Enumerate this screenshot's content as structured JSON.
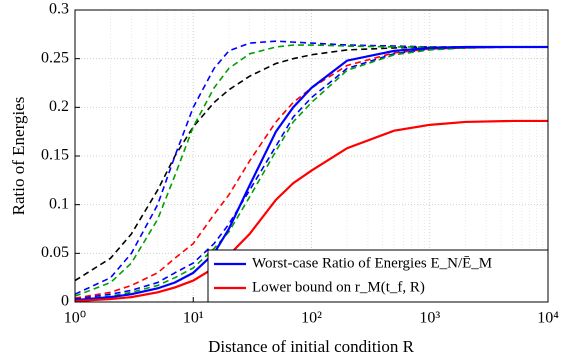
{
  "chart_data": {
    "type": "line",
    "xlabel": "Distance of initial condition R",
    "ylabel": "Ratio of Energies",
    "xscale": "log",
    "grid": true,
    "legend": "lower right",
    "xlim": [
      1,
      10000
    ],
    "xticks": [
      {
        "value": 1,
        "label": "10⁰"
      },
      {
        "value": 10,
        "label": "10¹"
      },
      {
        "value": 100,
        "label": "10²"
      },
      {
        "value": 1000,
        "label": "10³"
      },
      {
        "value": 10000,
        "label": "10⁴"
      }
    ],
    "ylim": [
      0,
      0.3
    ],
    "yticks": [
      0,
      0.05,
      0.1,
      0.15,
      0.2,
      0.25,
      0.3
    ],
    "x": [
      1,
      2,
      3,
      5,
      7,
      10,
      15,
      20,
      30,
      50,
      70,
      100,
      200,
      500,
      1000,
      2000,
      5000,
      10000
    ],
    "series": [
      {
        "color": "#000000",
        "style": "dashed",
        "values": [
          0.022,
          0.045,
          0.07,
          0.115,
          0.15,
          0.18,
          0.205,
          0.218,
          0.232,
          0.245,
          0.25,
          0.254,
          0.259,
          0.261,
          0.262,
          0.262,
          0.262,
          0.262
        ]
      },
      {
        "color": "#0000ff",
        "style": "dashed",
        "values": [
          0.008,
          0.025,
          0.05,
          0.1,
          0.15,
          0.2,
          0.24,
          0.258,
          0.266,
          0.268,
          0.267,
          0.266,
          0.264,
          0.263,
          0.262,
          0.262,
          0.262,
          0.262
        ]
      },
      {
        "color": "#00a000",
        "style": "dashed",
        "values": [
          0.006,
          0.02,
          0.04,
          0.085,
          0.13,
          0.18,
          0.22,
          0.24,
          0.255,
          0.262,
          0.264,
          0.264,
          0.263,
          0.262,
          0.262,
          0.262,
          0.262,
          0.262
        ]
      },
      {
        "color": "#ff0000",
        "style": "dashed",
        "values": [
          0.004,
          0.01,
          0.017,
          0.03,
          0.045,
          0.06,
          0.09,
          0.11,
          0.145,
          0.185,
          0.205,
          0.22,
          0.243,
          0.256,
          0.26,
          0.261,
          0.262,
          0.262
        ]
      },
      {
        "color": "#0000ff",
        "style": "dashed",
        "values": [
          0.003,
          0.008,
          0.012,
          0.02,
          0.03,
          0.04,
          0.06,
          0.08,
          0.115,
          0.16,
          0.19,
          0.21,
          0.24,
          0.255,
          0.26,
          0.261,
          0.262,
          0.262
        ]
      },
      {
        "color": "#00a000",
        "style": "dashed",
        "values": [
          0.002,
          0.006,
          0.01,
          0.017,
          0.025,
          0.035,
          0.055,
          0.072,
          0.108,
          0.155,
          0.185,
          0.205,
          0.238,
          0.254,
          0.259,
          0.261,
          0.262,
          0.262
        ]
      },
      {
        "name": "Worst-case Ratio of Energies E_N/Ē_M",
        "color": "#0000ff",
        "style": "solid",
        "values": [
          0.002,
          0.005,
          0.008,
          0.014,
          0.02,
          0.03,
          0.05,
          0.075,
          0.12,
          0.175,
          0.2,
          0.22,
          0.248,
          0.258,
          0.261,
          0.262,
          0.262,
          0.262
        ]
      },
      {
        "name": "Lower bound on r_M(t_f, R)",
        "color": "#ff0000",
        "style": "solid",
        "values": [
          0.001,
          0.003,
          0.005,
          0.01,
          0.015,
          0.022,
          0.035,
          0.048,
          0.07,
          0.105,
          0.122,
          0.135,
          0.158,
          0.176,
          0.182,
          0.185,
          0.186,
          0.186
        ]
      }
    ]
  }
}
